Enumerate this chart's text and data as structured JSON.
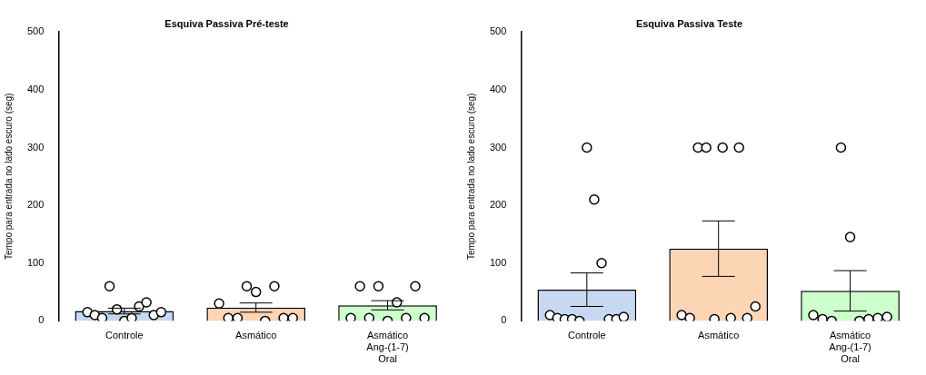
{
  "chart_data": [
    {
      "type": "bar",
      "title": "Esquiva Passiva Pré-teste",
      "ylabel": "Tempo para entrada no lado escuro (seg)",
      "categories": [
        "Controle",
        "Asmático",
        "Asmático Ang-(1-7) Oral"
      ],
      "ylim": [
        0,
        500
      ],
      "yticks": [
        0,
        100,
        200,
        300,
        400,
        500
      ],
      "grid": false,
      "legend": false,
      "series": [
        {
          "colors": [
            "#c6d9f1",
            "#fcd5b5",
            "#ccffcc"
          ],
          "values": [
            17,
            23,
            27
          ],
          "errors": [
            5,
            8,
            8
          ]
        },
        {
          "type": "scatter",
          "color": "#ffffff",
          "marker": "circle",
          "x": [
            "Controle",
            "Controle",
            "Controle",
            "Controle",
            "Controle",
            "Controle",
            "Controle",
            "Controle",
            "Controle",
            "Controle",
            "Controle",
            "Asmático",
            "Asmático",
            "Asmático",
            "Asmático",
            "Asmático",
            "Asmático",
            "Asmático",
            "Asmático",
            "Asmático",
            "Asmático Ang-(1-7) Oral",
            "Asmático Ang-(1-7) Oral",
            "Asmático Ang-(1-7) Oral",
            "Asmático Ang-(1-7) Oral",
            "Asmático Ang-(1-7) Oral",
            "Asmático Ang-(1-7) Oral",
            "Asmático Ang-(1-7) Oral",
            "Asmático Ang-(1-7) Oral",
            "Asmático Ang-(1-7) Oral"
          ],
          "values": [
            15,
            10,
            5,
            60,
            20,
            0,
            5,
            25,
            32,
            10,
            15,
            30,
            5,
            5,
            60,
            50,
            0,
            60,
            5,
            5,
            5,
            60,
            5,
            60,
            0,
            32,
            5,
            60,
            5
          ]
        }
      ]
    },
    {
      "type": "bar",
      "title": "Esquiva Passiva Teste",
      "ylabel": "Tempo para entrada no lado escuro (seg)",
      "categories": [
        "Controle",
        "Asmático",
        "Asmático Ang-(1-7) Oral"
      ],
      "ylim": [
        0,
        500
      ],
      "yticks": [
        0,
        100,
        200,
        300,
        400,
        500
      ],
      "grid": false,
      "legend": false,
      "series": [
        {
          "colors": [
            "#c6d9f1",
            "#fcd5b5",
            "#ccffcc"
          ],
          "values": [
            54,
            125,
            52
          ],
          "errors": [
            29,
            48,
            35
          ]
        },
        {
          "type": "scatter",
          "color": "#ffffff",
          "marker": "circle",
          "x": [
            "Controle",
            "Controle",
            "Controle",
            "Controle",
            "Controle",
            "Controle",
            "Controle",
            "Controle",
            "Controle",
            "Controle",
            "Controle",
            "Asmático",
            "Asmático",
            "Asmático",
            "Asmático",
            "Asmático",
            "Asmático",
            "Asmático",
            "Asmático",
            "Asmático",
            "Asmático",
            "Asmático Ang-(1-7) Oral",
            "Asmático Ang-(1-7) Oral",
            "Asmático Ang-(1-7) Oral",
            "Asmático Ang-(1-7) Oral",
            "Asmático Ang-(1-7) Oral",
            "Asmático Ang-(1-7) Oral",
            "Asmático Ang-(1-7) Oral",
            "Asmático Ang-(1-7) Oral",
            "Asmático Ang-(1-7) Oral"
          ],
          "values": [
            10,
            5,
            3,
            3,
            0,
            300,
            210,
            100,
            3,
            3,
            7,
            10,
            5,
            300,
            300,
            3,
            300,
            5,
            300,
            5,
            25,
            10,
            3,
            0,
            300,
            145,
            0,
            3,
            5,
            7
          ]
        }
      ]
    }
  ]
}
